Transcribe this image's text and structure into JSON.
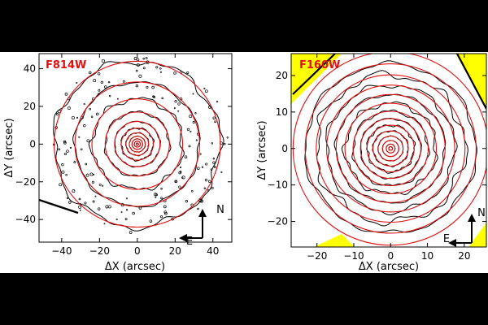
{
  "chart_data": [
    {
      "type": "contour",
      "panel_label": "F814W",
      "xlabel_symbol": "ΔX",
      "xlabel_unit": "(arcsec)",
      "ylabel_symbol": "ΔY",
      "ylabel_unit": "(arcsec)",
      "xlim": [
        -52,
        50
      ],
      "ylim": [
        -52,
        48
      ],
      "xticks": [
        -40,
        -20,
        0,
        20,
        40
      ],
      "yticks": [
        -40,
        -20,
        0,
        20,
        40
      ],
      "ellipse_model_radii": [
        0.6,
        1.6,
        2.8,
        4.2,
        6,
        8.5,
        12,
        17,
        24,
        33,
        44
      ],
      "contour_levels_radii": [
        0.6,
        1.6,
        2.8,
        4.2,
        6,
        8.5,
        12,
        17,
        24,
        33,
        44
      ],
      "compass": {
        "north": "N",
        "east": "E"
      },
      "colors": {
        "model": "#e01010",
        "data": "#000000",
        "label": "#e01010"
      }
    },
    {
      "type": "contour",
      "panel_label": "F160W",
      "xlabel_symbol": "ΔX",
      "xlabel_unit": "(arcsec)",
      "ylabel_symbol": "ΔY",
      "ylabel_unit": "(arcsec)",
      "xlim": [
        -27,
        26
      ],
      "ylim": [
        -27,
        26
      ],
      "xticks": [
        -20,
        -10,
        0,
        10,
        20
      ],
      "yticks": [
        -20,
        -10,
        0,
        10,
        20
      ],
      "ellipse_model_radii": [
        0.5,
        1.2,
        2.2,
        3.4,
        4.8,
        6.4,
        8.2,
        10.2,
        12.4,
        14.8,
        17.4,
        20.2,
        23.2,
        26.5
      ],
      "contour_levels_radii": [
        0.5,
        1.2,
        2.2,
        3.4,
        4.8,
        6.4,
        8.2,
        10.2,
        12.4,
        14.8,
        17.4,
        20.2,
        23.2
      ],
      "compass": {
        "north": "N",
        "east": "E"
      },
      "colors": {
        "model": "#e01010",
        "data": "#000000",
        "label": "#e01010",
        "mask": "#ffff00"
      }
    }
  ]
}
